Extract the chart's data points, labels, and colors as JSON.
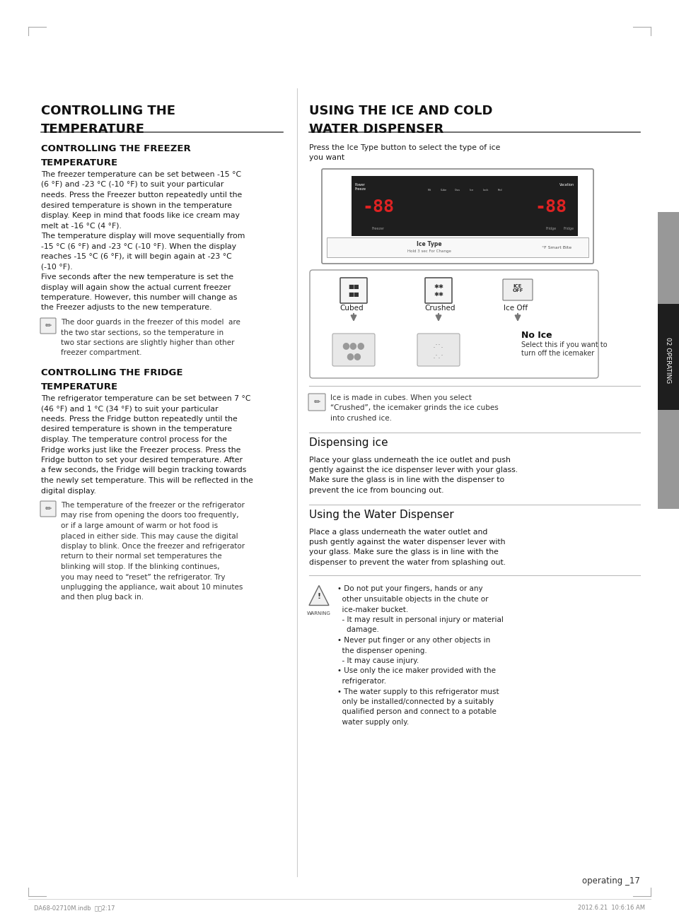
{
  "bg_color": "#ffffff",
  "left_section_title_line1": "CONTROLLING THE",
  "left_section_title_line2": "TEMPERATURE",
  "right_section_title_line1": "USING THE ICE AND COLD",
  "right_section_title_line2": "WATER DISPENSER",
  "left_sub1_line1": "CONTROLLING THE FREEZER",
  "left_sub1_line2": "TEMPERATURE",
  "left_body1_lines": [
    "The freezer temperature can be set between -15 °C",
    "(6 °F) and -23 °C (-10 °F) to suit your particular",
    "needs. Press the Freezer button repeatedly until the",
    "desired temperature is shown in the temperature",
    "display. Keep in mind that foods like ice cream may",
    "melt at -16 °C (4 °F).",
    "The temperature display will move sequentially from",
    "-15 °C (6 °F) and -23 °C (-10 °F). When the display",
    "reaches -15 °C (6 °F), it will begin again at -23 °C",
    "(-10 °F).",
    "Five seconds after the new temperature is set the",
    "display will again show the actual current freezer",
    "temperature. However, this number will change as",
    "the Freezer adjusts to the new temperature."
  ],
  "left_note1_lines": [
    "The door guards in the freezer of this model  are",
    "the two star sections, so the temperature in",
    "two star sections are slightly higher than other",
    "freezer compartment."
  ],
  "left_sub2_line1": "CONTROLLING THE FRIDGE",
  "left_sub2_line2": "TEMPERATURE",
  "left_body2_lines": [
    "The refrigerator temperature can be set between 7 °C",
    "(46 °F) and 1 °C (34 °F) to suit your particular",
    "needs. Press the Fridge button repeatedly until the",
    "desired temperature is shown in the temperature",
    "display. The temperature control process for the",
    "Fridge works just like the Freezer process. Press the",
    "Fridge button to set your desired temperature. After",
    "a few seconds, the Fridge will begin tracking towards",
    "the newly set temperature. This will be reflected in the",
    "digital display."
  ],
  "left_note2_lines": [
    "The temperature of the freezer or the refrigerator",
    "may rise from opening the doors too frequently,",
    "or if a large amount of warm or hot food is",
    "placed in either side. This may cause the digital",
    "display to blink. Once the freezer and refrigerator",
    "return to their normal set temperatures the",
    "blinking will stop. If the blinking continues,",
    "you may need to “reset” the refrigerator. Try",
    "unplugging the appliance, wait about 10 minutes",
    "and then plug back in."
  ],
  "right_intro_lines": [
    "Press the Ice Type button to select the type of ice",
    "you want"
  ],
  "right_note1_lines": [
    "Ice is made in cubes. When you select",
    "“Crushed”, the icemaker grinds the ice cubes",
    "into crushed ice."
  ],
  "right_sub1_title": "Dispensing ice",
  "right_body1_lines": [
    "Place your glass underneath the ice outlet and push",
    "gently against the ice dispenser lever with your glass.",
    "Make sure the glass is in line with the dispenser to",
    "prevent the ice from bouncing out."
  ],
  "right_sub2_title": "Using the Water Dispenser",
  "right_body2_lines": [
    "Place a glass underneath the water outlet and",
    "push gently against the water dispenser lever with",
    "your glass. Make sure the glass is in line with the",
    "dispenser to prevent the water from splashing out."
  ],
  "warning_lines": [
    "• Do not put your fingers, hands or any",
    "  other unsuitable objects in the chute or",
    "  ice-maker bucket.",
    "  - It may result in personal injury or material",
    "    damage.",
    "• Never put finger or any other objects in",
    "  the dispenser opening.",
    "  - It may cause injury.",
    "• Use only the ice maker provided with the",
    "  refrigerator.",
    "• The water supply to this refrigerator must",
    "  only be installed/connected by a suitably",
    "  qualified person and connect to a potable",
    "  water supply only."
  ],
  "page_number": "operating _17",
  "footer_left": "DA68-02710M.indb  섹션2:17",
  "footer_right": "2012.6.21  10:6:16 AM",
  "operating_label": "02 OPERATING",
  "sidebar_gray1": "#989898",
  "sidebar_black": "#1e1e1e",
  "sidebar_gray2": "#989898"
}
